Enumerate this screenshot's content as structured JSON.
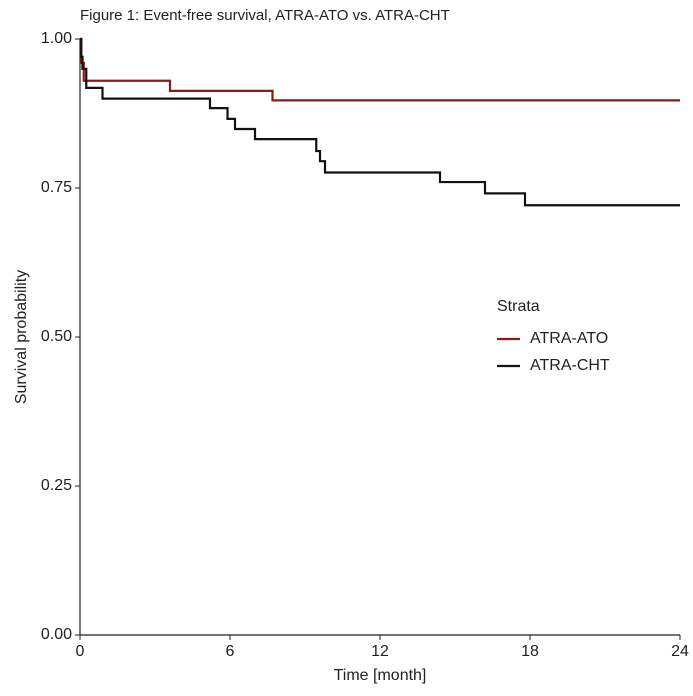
{
  "chart_data": {
    "type": "step",
    "title": "Figure 1: Event-free survival, ATRA-ATO vs. ATRA-CHT",
    "x_label": "Time [month]",
    "y_label": "Survival probability",
    "legend_title": "Strata",
    "xlim": [
      0,
      24
    ],
    "ylim": [
      0,
      1
    ],
    "xticks": [
      0,
      6,
      12,
      18,
      24
    ],
    "yticks": [
      {
        "value": 0,
        "label": "0.00"
      },
      {
        "value": 0.25,
        "label": "0.25"
      },
      {
        "value": 0.5,
        "label": "0.50"
      },
      {
        "value": 0.75,
        "label": "0.75"
      },
      {
        "value": 1,
        "label": "1.00"
      }
    ],
    "series": [
      {
        "name": "ATRA-ATO",
        "color": "#8b1a1a",
        "x": [
          0,
          0.05,
          0.15,
          3.6,
          7.7,
          24
        ],
        "values": [
          1,
          0.96,
          0.93,
          0.913,
          0.897,
          0.897
        ]
      },
      {
        "name": "ATRA-CHT",
        "color": "#111111",
        "x": [
          0,
          0.05,
          0.1,
          0.25,
          0.9,
          5.2,
          5.9,
          6.2,
          7.0,
          9.45,
          9.6,
          9.8,
          14.4,
          16.2,
          17.8,
          24
        ],
        "values": [
          1,
          0.97,
          0.95,
          0.918,
          0.9,
          0.884,
          0.866,
          0.849,
          0.832,
          0.812,
          0.795,
          0.776,
          0.76,
          0.741,
          0.721,
          0.721
        ]
      }
    ]
  }
}
